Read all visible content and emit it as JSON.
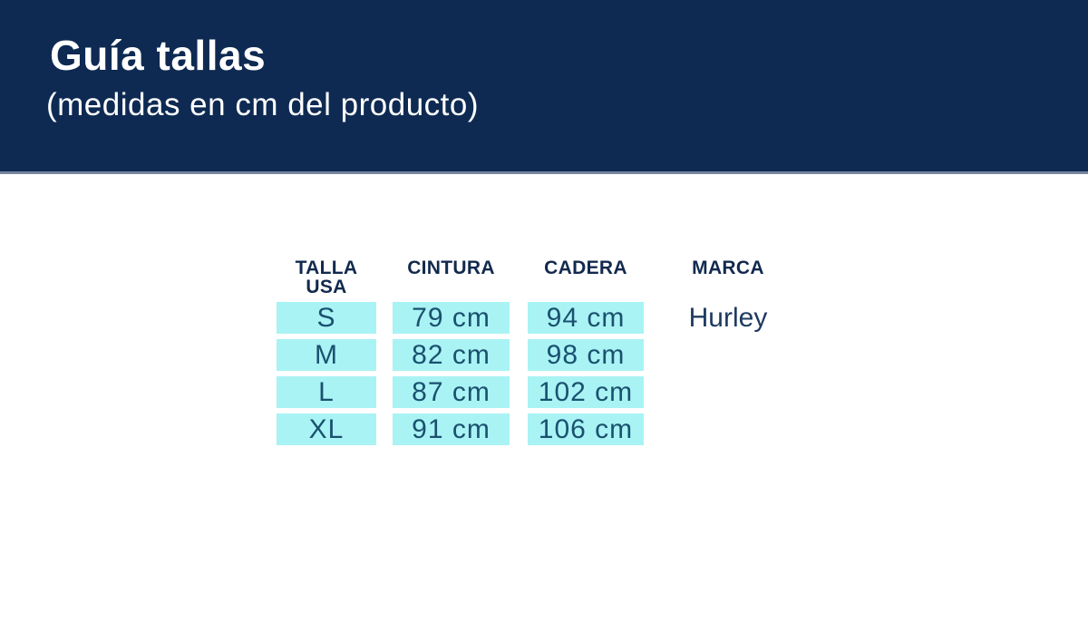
{
  "header": {
    "title": "Guía tallas",
    "subtitle": "(medidas en cm del producto)",
    "bg_color": "#0e2a52",
    "text_color": "#ffffff"
  },
  "table": {
    "columns": [
      {
        "key": "talla",
        "label": "TALLA USA",
        "label_lines": [
          "TALLA",
          "USA"
        ]
      },
      {
        "key": "cintura",
        "label": "CINTURA"
      },
      {
        "key": "cadera",
        "label": "CADERA"
      },
      {
        "key": "marca",
        "label": "MARCA"
      }
    ],
    "rows": [
      {
        "talla": "S",
        "cintura": "79 cm",
        "cadera": "94 cm",
        "marca": "Hurley"
      },
      {
        "talla": "M",
        "cintura": "82 cm",
        "cadera": "98 cm",
        "marca": ""
      },
      {
        "talla": "L",
        "cintura": "87 cm",
        "cadera": "102 cm",
        "marca": ""
      },
      {
        "talla": "XL",
        "cintura": "91 cm",
        "cadera": "106 cm",
        "marca": ""
      }
    ],
    "cell_bg_color": "#a9f3f4",
    "cell_text_color": "#1a516f",
    "header_text_color": "#12294e",
    "brand_text_color": "#1e3a60"
  },
  "chart_data": {
    "type": "table",
    "title": "Guía tallas (medidas en cm del producto)",
    "columns": [
      "TALLA USA",
      "CINTURA",
      "CADERA",
      "MARCA"
    ],
    "rows": [
      [
        "S",
        "79 cm",
        "94 cm",
        "Hurley"
      ],
      [
        "M",
        "82 cm",
        "98 cm",
        ""
      ],
      [
        "L",
        "87 cm",
        "102 cm",
        ""
      ],
      [
        "XL",
        "91 cm",
        "106 cm",
        ""
      ]
    ],
    "sizes": [
      "S",
      "M",
      "L",
      "XL"
    ],
    "cintura_cm": [
      79,
      82,
      87,
      91
    ],
    "cadera_cm": [
      94,
      98,
      102,
      106
    ],
    "brand": "Hurley",
    "units": "cm"
  }
}
